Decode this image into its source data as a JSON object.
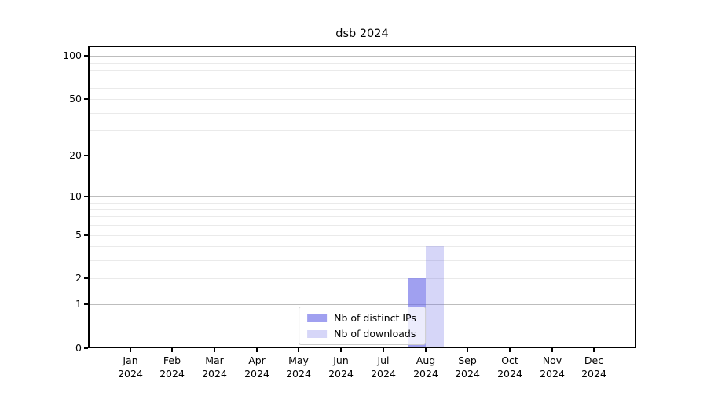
{
  "figure": {
    "background": "#ffffff"
  },
  "chart_data": {
    "type": "bar",
    "title": "dsb 2024",
    "xlabel": "",
    "ylabel": "",
    "months": [
      "Jan",
      "Feb",
      "Mar",
      "Apr",
      "May",
      "Jun",
      "Jul",
      "Aug",
      "Sep",
      "Oct",
      "Nov",
      "Dec"
    ],
    "year": "2024",
    "categories": [
      "Jan 2024",
      "Feb 2024",
      "Mar 2024",
      "Apr 2024",
      "May 2024",
      "Jun 2024",
      "Jul 2024",
      "Aug 2024",
      "Sep 2024",
      "Oct 2024",
      "Nov 2024",
      "Dec 2024"
    ],
    "series": [
      {
        "name": "Nb of distinct IPs",
        "color": "#6666e6",
        "opacity": 0.62,
        "apparent_color": "#a0a0f0",
        "values": [
          0,
          0,
          0,
          0,
          0,
          0,
          0,
          2,
          0,
          0,
          0,
          0
        ]
      },
      {
        "name": "Nb of downloads",
        "color": "#6666e6",
        "opacity": 0.27,
        "apparent_color": "#d6d6f8",
        "values": [
          0,
          0,
          0,
          0,
          0,
          0,
          0,
          4,
          0,
          0,
          0,
          0
        ]
      }
    ],
    "yscale": "log10(1+y)",
    "ylim": [
      0,
      118
    ],
    "ytick_values": [
      0,
      1,
      2,
      5,
      10,
      20,
      50,
      100
    ],
    "ytick_labels": [
      "0",
      "1",
      "2",
      "5",
      "10",
      "20",
      "50",
      "100"
    ],
    "decade_gridline_values": [
      1,
      10,
      100
    ],
    "minor_gridline_values": [
      3,
      4,
      6,
      7,
      8,
      9,
      30,
      40,
      60,
      70,
      80,
      90
    ],
    "grid": true,
    "legend": {
      "position": "lower center",
      "entries": [
        "Nb of distinct IPs",
        "Nb of downloads"
      ]
    },
    "colors": {
      "axis": "#000000",
      "text": "#000000",
      "grid_decade": "#bdbdbd",
      "grid_minor": "#eaeaea",
      "legend_border": "#cccccc",
      "legend_background": "rgba(255,255,255,0.8)"
    }
  }
}
